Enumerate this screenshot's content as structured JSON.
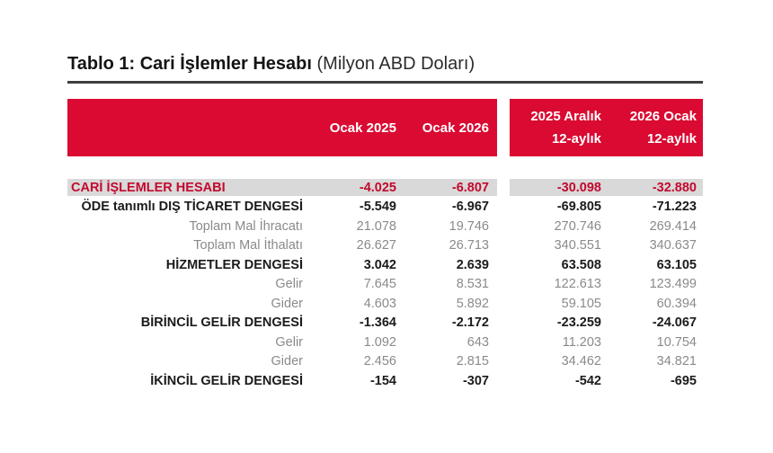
{
  "title": {
    "main": "Tablo 1: Cari İşlemler Hesabı",
    "unit": "(Milyon ABD Doları)"
  },
  "header": {
    "columns": [
      {
        "line1": "Ocak 2025",
        "line2": ""
      },
      {
        "line1": "Ocak 2026",
        "line2": ""
      },
      {
        "line1": "2025 Aralık",
        "line2": "12-aylık"
      },
      {
        "line1": "2026 Ocak",
        "line2": "12-aylık"
      }
    ]
  },
  "colors": {
    "header_red": "#da0a32",
    "highlight_bg": "#d9d9d9",
    "highlight_text": "#c3092e",
    "bold_text": "#1b1b1b",
    "muted_text": "#8a8a8a",
    "rule": "#3f3f3f"
  },
  "chart_data": {
    "type": "table",
    "title": "Tablo 1: Cari İşlemler Hesabı (Milyon ABD Doları)",
    "columns": [
      "Ocak 2025",
      "Ocak 2026",
      "2025 Aralık 12-aylık",
      "2026 Ocak 12-aylık"
    ],
    "rows": [
      {
        "label": "CARİ İŞLEMLER HESABI",
        "style": "highlight",
        "values": [
          "-4.025",
          "-6.807",
          "-30.098",
          "-32.880"
        ]
      },
      {
        "label": "ÖDE tanımlı DIŞ TİCARET DENGESİ",
        "style": "bold",
        "values": [
          "-5.549",
          "-6.967",
          "-69.805",
          "-71.223"
        ]
      },
      {
        "label": "Toplam Mal İhracatı",
        "style": "muted",
        "values": [
          "21.078",
          "19.746",
          "270.746",
          "269.414"
        ]
      },
      {
        "label": "Toplam Mal İthalatı",
        "style": "muted",
        "values": [
          "26.627",
          "26.713",
          "340.551",
          "340.637"
        ]
      },
      {
        "label": "HİZMETLER DENGESİ",
        "style": "bold",
        "values": [
          "3.042",
          "2.639",
          "63.508",
          "63.105"
        ]
      },
      {
        "label": "Gelir",
        "style": "muted",
        "values": [
          "7.645",
          "8.531",
          "122.613",
          "123.499"
        ]
      },
      {
        "label": "Gider",
        "style": "muted",
        "values": [
          "4.603",
          "5.892",
          "59.105",
          "60.394"
        ]
      },
      {
        "label": "BİRİNCİL GELİR DENGESİ",
        "style": "bold",
        "values": [
          "-1.364",
          "-2.172",
          "-23.259",
          "-24.067"
        ]
      },
      {
        "label": "Gelir",
        "style": "muted",
        "values": [
          "1.092",
          "643",
          "11.203",
          "10.754"
        ]
      },
      {
        "label": "Gider",
        "style": "muted",
        "values": [
          "2.456",
          "2.815",
          "34.462",
          "34.821"
        ]
      },
      {
        "label": "İKİNCİL GELİR DENGESİ",
        "style": "bold",
        "values": [
          "-154",
          "-307",
          "-542",
          "-695"
        ]
      }
    ]
  }
}
